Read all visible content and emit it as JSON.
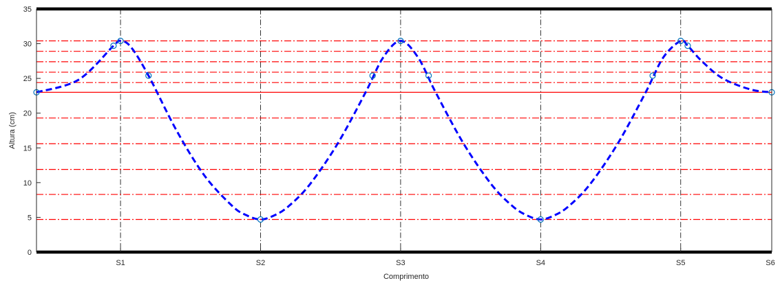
{
  "chart_data": {
    "type": "line",
    "title": "",
    "xlabel": "Comprimento",
    "ylabel": "Altura (cm)",
    "xlim": [
      0,
      10.5
    ],
    "ylim": [
      0,
      35
    ],
    "grid": "vertical dash-dot lines at supports",
    "legend": "none",
    "x_ticks": [
      {
        "x": 1.2,
        "label": "S1"
      },
      {
        "x": 3.2,
        "label": "S2"
      },
      {
        "x": 5.2,
        "label": "S3"
      },
      {
        "x": 7.2,
        "label": "S4"
      },
      {
        "x": 9.2,
        "label": "S5"
      },
      {
        "x": 10.5,
        "label": "S6"
      }
    ],
    "y_ticks": [
      0,
      5,
      10,
      15,
      20,
      25,
      30,
      35
    ],
    "reference_line": {
      "y": 23,
      "color": "#ff0000",
      "style": "solid"
    },
    "level_lines": {
      "values": [
        4.7,
        8.3,
        11.9,
        15.6,
        19.3,
        24.4,
        25.9,
        27.4,
        28.9,
        30.4
      ],
      "color": "#ff0000",
      "style": "dash-dot"
    },
    "series": [
      {
        "color": "#0000ff",
        "style": "dashed",
        "x": [
          0,
          0.6,
          1.1,
          1.2,
          1.35,
          1.6,
          2.0,
          2.4,
          2.8,
          3.0,
          3.2,
          3.4,
          3.6,
          3.9,
          4.3,
          4.7,
          4.95,
          5.2,
          5.45,
          5.7,
          6.1,
          6.5,
          6.8,
          7.0,
          7.2,
          7.4,
          7.6,
          7.9,
          8.3,
          8.7,
          8.95,
          9.2,
          9.3,
          9.5,
          9.8,
          10.2,
          10.5
        ],
        "y": [
          23.0,
          24.8,
          29.7,
          30.4,
          29.5,
          25.4,
          17.5,
          11.0,
          6.6,
          5.3,
          4.7,
          5.3,
          6.6,
          9.7,
          15.6,
          23.0,
          28.0,
          30.4,
          28.0,
          23.0,
          15.6,
          9.7,
          6.6,
          5.3,
          4.7,
          5.3,
          6.6,
          9.7,
          15.6,
          23.0,
          28.0,
          30.4,
          29.7,
          27.5,
          25.0,
          23.4,
          23.0
        ]
      }
    ],
    "markers": {
      "color": "#0072bd",
      "shape": "circle",
      "points": [
        [
          0,
          23.0
        ],
        [
          1.1,
          29.7
        ],
        [
          1.2,
          30.4
        ],
        [
          1.6,
          25.4
        ],
        [
          3.2,
          4.7
        ],
        [
          4.8,
          25.4
        ],
        [
          5.2,
          30.4
        ],
        [
          5.6,
          25.4
        ],
        [
          7.2,
          4.7
        ],
        [
          8.8,
          25.4
        ],
        [
          9.2,
          30.4
        ],
        [
          9.3,
          29.7
        ],
        [
          10.5,
          23.0
        ]
      ]
    }
  }
}
